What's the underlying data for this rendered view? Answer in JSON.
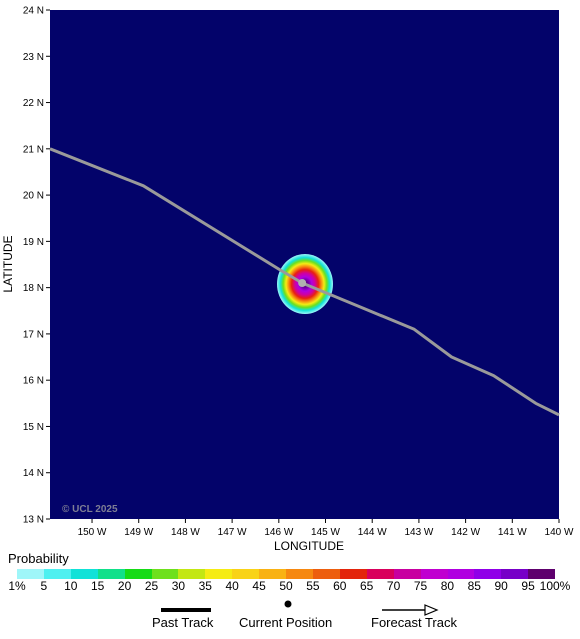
{
  "map": {
    "y_axis_title": "LATITUDE",
    "x_axis_title": "LONGITUDE",
    "lat_ticks": [
      "24 N",
      "23 N",
      "22 N",
      "21 N",
      "20 N",
      "19 N",
      "18 N",
      "17 N",
      "16 N",
      "15 N",
      "14 N",
      "13 N"
    ],
    "lon_ticks": [
      "150 W",
      "149 W",
      "148 W",
      "147 W",
      "146 W",
      "145 W",
      "144 W",
      "143 W",
      "142 W",
      "141 W",
      "140 W"
    ],
    "lat_range": [
      13,
      24
    ],
    "lon_range": [
      -150.9,
      -140
    ],
    "copyright": "© UCL 2025",
    "background_color": "#03036a",
    "track_color": "#9a9a9a",
    "track_lonlat": [
      [
        -150.9,
        21.0
      ],
      [
        -148.9,
        20.2
      ],
      [
        -146.0,
        18.4
      ],
      [
        -145.5,
        18.1
      ],
      [
        -144.3,
        17.6
      ],
      [
        -143.1,
        17.1
      ],
      [
        -142.3,
        16.5
      ],
      [
        -141.4,
        16.1
      ],
      [
        -140.5,
        15.5
      ],
      [
        -140.0,
        15.25
      ]
    ],
    "current_position": {
      "lon": -145.5,
      "lat": 18.1
    },
    "probability_blob_max_percent": 100
  },
  "legend": {
    "title": "Probability",
    "labels": [
      "1%",
      "5",
      "10",
      "15",
      "20",
      "25",
      "30",
      "35",
      "40",
      "45",
      "50",
      "55",
      "60",
      "65",
      "70",
      "75",
      "80",
      "85",
      "90",
      "95",
      "100%"
    ],
    "colors": [
      "#9ff6f9",
      "#4ef0f0",
      "#11e2d8",
      "#11e08a",
      "#16db16",
      "#6ee01c",
      "#c3e713",
      "#f5ec14",
      "#f9d317",
      "#f9b213",
      "#f68810",
      "#ed5e0e",
      "#e3240b",
      "#d9005b",
      "#c800a0",
      "#c000d0",
      "#b000e0",
      "#9000e8",
      "#7700c8",
      "#5e006d"
    ]
  },
  "key": {
    "past_track": "Past Track",
    "current_position": "Current Position",
    "forecast_track": "Forecast Track"
  }
}
